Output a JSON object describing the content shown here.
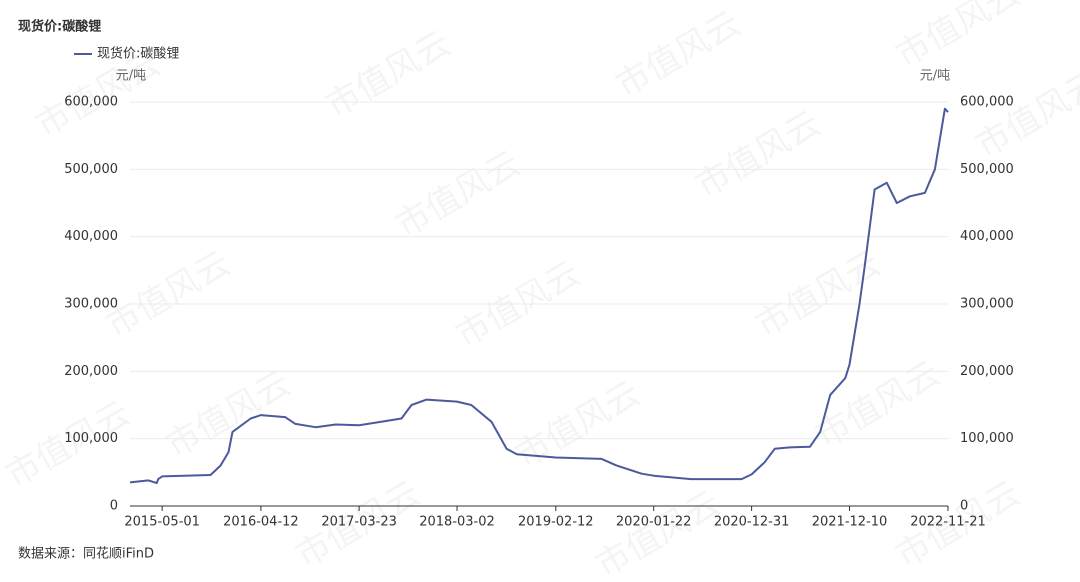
{
  "chart_data": {
    "type": "line",
    "title": "现货价:碳酸锂",
    "source": "数据来源：同花顺iFinD",
    "watermark": "市值风云",
    "y_unit": "元/吨",
    "y2_unit": "元/吨",
    "x": [
      "2015-01-08",
      "2015-03-14",
      "2015-04-12",
      "2015-04-17",
      "2015-05-01",
      "2015-10-18",
      "2015-11-22",
      "2015-12-20",
      "2016-01-03",
      "2016-03-07",
      "2016-04-12",
      "2016-07-06",
      "2016-08-11",
      "2016-10-21",
      "2016-12-31",
      "2017-03-23",
      "2017-06-09",
      "2017-08-19",
      "2017-09-23",
      "2017-11-15",
      "2018-03-02",
      "2018-04-21",
      "2018-07-01",
      "2018-08-23",
      "2018-09-28",
      "2019-02-12",
      "2019-07-23",
      "2019-09-14",
      "2019-12-11",
      "2020-01-22",
      "2020-06-01",
      "2020-11-26",
      "2020-12-31",
      "2021-02-15",
      "2021-03-22",
      "2021-05-14",
      "2021-07-24",
      "2021-08-29",
      "2021-10-03",
      "2021-11-25",
      "2021-12-10",
      "2022-01-14",
      "2022-02-01",
      "2022-03-08",
      "2022-04-20",
      "2022-05-25",
      "2022-07-10",
      "2022-09-01",
      "2022-10-06",
      "2022-11-10",
      "2022-11-21"
    ],
    "series": [
      {
        "name": "现货价:碳酸锂",
        "color": "#4a5a9c",
        "values": [
          35000,
          38000,
          34000,
          40000,
          44000,
          46000,
          60000,
          80000,
          110000,
          130000,
          135000,
          132000,
          122000,
          117000,
          121000,
          120000,
          125000,
          130000,
          150000,
          158000,
          155000,
          150000,
          125000,
          85000,
          77000,
          72000,
          70000,
          60000,
          48000,
          45000,
          40000,
          40000,
          47000,
          65000,
          85000,
          87000,
          88000,
          110000,
          165000,
          190000,
          210000,
          300000,
          355000,
          470000,
          480000,
          450000,
          460000,
          465000,
          500000,
          590000,
          585000
        ]
      }
    ],
    "xlim": [
      "2015-01-08",
      "2022-11-21"
    ],
    "xticks": [
      "2015-05-01",
      "2016-04-12",
      "2017-03-23",
      "2018-03-02",
      "2019-02-12",
      "2020-01-22",
      "2020-12-31",
      "2021-12-10",
      "2022-11-21"
    ],
    "ylim": [
      0,
      600000
    ],
    "yticks": [
      0,
      {
        "value": 100000,
        "label": "100,000"
      },
      {
        "value": 200000,
        "label": "200,000"
      },
      {
        "value": 300000,
        "label": "300,000"
      },
      {
        "value": 400000,
        "label": "400,000"
      },
      {
        "value": 500000,
        "label": "500,000"
      },
      {
        "value": 600000,
        "label": "600,000"
      }
    ],
    "y2lim": [
      0,
      600000
    ],
    "y2ticks": [
      0,
      {
        "value": 100000,
        "label": "100,000"
      },
      {
        "value": 200000,
        "label": "200,000"
      },
      {
        "value": 300000,
        "label": "300,000"
      },
      {
        "value": 400000,
        "label": "400,000"
      },
      {
        "value": 500000,
        "label": "500,000"
      },
      {
        "value": 600000,
        "label": "600,000"
      }
    ],
    "grid": true
  }
}
